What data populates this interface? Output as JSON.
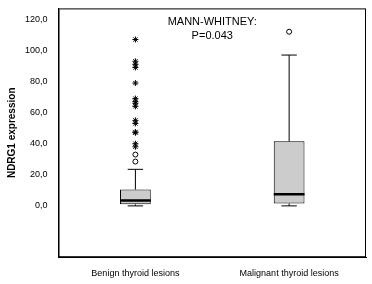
{
  "chart_data": {
    "type": "box",
    "annotations": [
      "MANN-WHITNEY:",
      "P=0.043"
    ],
    "y_label": "NDRG1 expression",
    "categories": [
      "Benign thyroid lesions",
      "Malignant thyroid lesions"
    ],
    "boxes": [
      {
        "min": 0,
        "q1": 1,
        "median": 3.5,
        "q3": 10.5,
        "max": 23.5,
        "outliers": [
          28.5,
          33
        ],
        "extremes": [
          38,
          40,
          47,
          47.5,
          53,
          55,
          64,
          66,
          67,
          69,
          79,
          89,
          91,
          93,
          107
        ]
      },
      {
        "min": 0,
        "q1": 1.5,
        "median": 7.5,
        "q3": 41.5,
        "max": 97,
        "outliers": [
          112
        ],
        "extremes": []
      }
    ],
    "color": "#cccccc",
    "ylim": [
      -33,
      127
    ],
    "yticks": [
      {
        "value": 0,
        "label": "0,0"
      },
      {
        "value": 20,
        "label": "20,0"
      },
      {
        "value": 40,
        "label": "40,0"
      },
      {
        "value": 60,
        "label": "60,0"
      },
      {
        "value": 80,
        "label": "80,0"
      },
      {
        "value": 100,
        "label": "100,0"
      },
      {
        "value": 120,
        "label": "120,0"
      }
    ],
    "grid": false
  }
}
